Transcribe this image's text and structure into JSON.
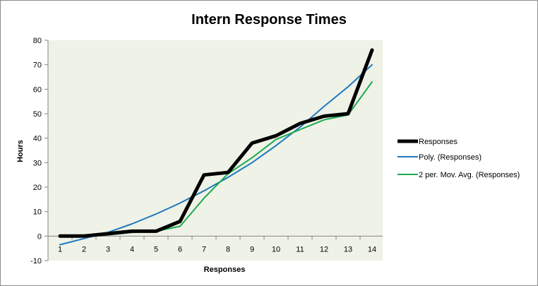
{
  "chart_data": {
    "type": "line",
    "title": "Intern Response Times",
    "xlabel": "Responses",
    "ylabel": "Hours",
    "categories": [
      "1",
      "2",
      "3",
      "4",
      "5",
      "6",
      "7",
      "8",
      "9",
      "10",
      "11",
      "12",
      "13",
      "14"
    ],
    "ylim": [
      -10,
      80
    ],
    "yticks": [
      -10,
      0,
      10,
      20,
      30,
      40,
      50,
      60,
      70,
      80
    ],
    "grid": false,
    "plot_background": "#eff2e6",
    "legend_position": "right",
    "series": [
      {
        "name": "Responses",
        "color": "#000000",
        "style": "thick",
        "values": [
          0,
          0,
          1,
          2,
          2,
          6,
          25,
          26,
          38,
          41,
          46,
          49,
          50,
          76
        ]
      },
      {
        "name": "Poly. (Responses)",
        "color": "#1f78c1",
        "style": "thin",
        "values": [
          -3.5,
          -1,
          1.5,
          5,
          9,
          13.5,
          18.5,
          24,
          30,
          37,
          44.5,
          53,
          61,
          70
        ]
      },
      {
        "name": "2 per. Mov. Avg. (Responses)",
        "color": "#1aaa50",
        "style": "thin",
        "values": [
          null,
          0,
          0.5,
          1.5,
          2,
          4,
          15.5,
          25.5,
          32,
          39.5,
          43.5,
          47.5,
          49.5,
          63
        ]
      }
    ]
  }
}
